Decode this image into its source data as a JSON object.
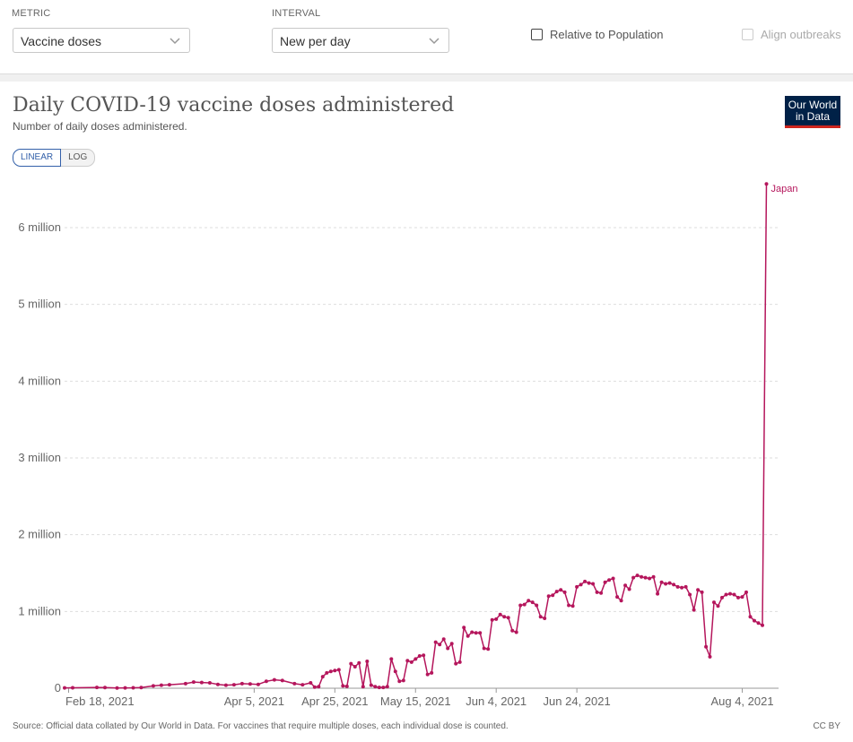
{
  "controls": {
    "metric_label": "METRIC",
    "metric_value": "Vaccine doses",
    "interval_label": "INTERVAL",
    "interval_value": "New per day",
    "relative_label": "Relative to Population",
    "align_label": "Align outbreaks"
  },
  "header": {
    "title": "Daily COVID-19 vaccine doses administered",
    "subtitle": "Number of daily doses administered.",
    "logo_line1": "Our World",
    "logo_line2": "in Data",
    "toggle_linear": "LINEAR",
    "toggle_log": "LOG"
  },
  "footer": {
    "source": "Source: Official data collated by Our World in Data. For vaccines that require multiple doses, each individual dose is counted.",
    "license": "CC BY"
  },
  "colors": {
    "series": "#b5165c",
    "grid": "#dddddd",
    "brand": "#002147",
    "brand_accent": "#ce261e"
  },
  "chart_data": {
    "type": "line",
    "title": "Daily COVID-19 vaccine doses administered",
    "subtitle": "Number of daily doses administered.",
    "scale": "linear",
    "x_start_date": "2021-02-17",
    "x_end_date": "2021-08-13",
    "x_tick_labels": [
      "Feb 18, 2021",
      "Apr 5, 2021",
      "Apr 25, 2021",
      "May 15, 2021",
      "Jun 4, 2021",
      "Jun 24, 2021",
      "Aug 4, 2021"
    ],
    "x_tick_dates": [
      "2021-02-18",
      "2021-04-05",
      "2021-04-25",
      "2021-05-15",
      "2021-06-04",
      "2021-06-24",
      "2021-08-04"
    ],
    "y_tick_labels": [
      "0",
      "1 million",
      "2 million",
      "3 million",
      "4 million",
      "5 million",
      "6 million"
    ],
    "y_tick_values": [
      0,
      1000000,
      2000000,
      3000000,
      4000000,
      5000000,
      6000000
    ],
    "ylim": [
      0,
      6600000
    ],
    "grid": true,
    "series": [
      {
        "name": "Japan",
        "points": [
          [
            "2021-02-17",
            5000
          ],
          [
            "2021-02-19",
            6000
          ],
          [
            "2021-02-25",
            10000
          ],
          [
            "2021-02-27",
            9000
          ],
          [
            "2021-03-02",
            4000
          ],
          [
            "2021-03-04",
            5000
          ],
          [
            "2021-03-06",
            6000
          ],
          [
            "2021-03-08",
            9000
          ],
          [
            "2021-03-11",
            30000
          ],
          [
            "2021-03-13",
            40000
          ],
          [
            "2021-03-15",
            45000
          ],
          [
            "2021-03-19",
            60000
          ],
          [
            "2021-03-21",
            80000
          ],
          [
            "2021-03-23",
            75000
          ],
          [
            "2021-03-25",
            70000
          ],
          [
            "2021-03-27",
            50000
          ],
          [
            "2021-03-29",
            40000
          ],
          [
            "2021-03-31",
            45000
          ],
          [
            "2021-04-02",
            60000
          ],
          [
            "2021-04-04",
            55000
          ],
          [
            "2021-04-06",
            50000
          ],
          [
            "2021-04-08",
            90000
          ],
          [
            "2021-04-10",
            110000
          ],
          [
            "2021-04-12",
            100000
          ],
          [
            "2021-04-15",
            60000
          ],
          [
            "2021-04-17",
            45000
          ],
          [
            "2021-04-19",
            70000
          ],
          [
            "2021-04-20",
            15000
          ],
          [
            "2021-04-21",
            20000
          ],
          [
            "2021-04-22",
            150000
          ],
          [
            "2021-04-23",
            200000
          ],
          [
            "2021-04-24",
            220000
          ],
          [
            "2021-04-25",
            230000
          ],
          [
            "2021-04-26",
            240000
          ],
          [
            "2021-04-27",
            30000
          ],
          [
            "2021-04-28",
            25000
          ],
          [
            "2021-04-29",
            320000
          ],
          [
            "2021-04-30",
            280000
          ],
          [
            "2021-05-01",
            330000
          ],
          [
            "2021-05-02",
            20000
          ],
          [
            "2021-05-03",
            350000
          ],
          [
            "2021-05-04",
            40000
          ],
          [
            "2021-05-05",
            20000
          ],
          [
            "2021-05-06",
            10000
          ],
          [
            "2021-05-07",
            10000
          ],
          [
            "2021-05-08",
            20000
          ],
          [
            "2021-05-09",
            380000
          ],
          [
            "2021-05-10",
            220000
          ],
          [
            "2021-05-11",
            90000
          ],
          [
            "2021-05-12",
            100000
          ],
          [
            "2021-05-13",
            360000
          ],
          [
            "2021-05-14",
            340000
          ],
          [
            "2021-05-15",
            380000
          ],
          [
            "2021-05-16",
            420000
          ],
          [
            "2021-05-17",
            430000
          ],
          [
            "2021-05-18",
            180000
          ],
          [
            "2021-05-19",
            200000
          ],
          [
            "2021-05-20",
            600000
          ],
          [
            "2021-05-21",
            570000
          ],
          [
            "2021-05-22",
            640000
          ],
          [
            "2021-05-23",
            520000
          ],
          [
            "2021-05-24",
            580000
          ],
          [
            "2021-05-25",
            320000
          ],
          [
            "2021-05-26",
            340000
          ],
          [
            "2021-05-27",
            790000
          ],
          [
            "2021-05-28",
            680000
          ],
          [
            "2021-05-29",
            730000
          ],
          [
            "2021-05-30",
            720000
          ],
          [
            "2021-05-31",
            720000
          ],
          [
            "2021-06-01",
            520000
          ],
          [
            "2021-06-02",
            510000
          ],
          [
            "2021-06-03",
            890000
          ],
          [
            "2021-06-04",
            900000
          ],
          [
            "2021-06-05",
            960000
          ],
          [
            "2021-06-06",
            930000
          ],
          [
            "2021-06-07",
            920000
          ],
          [
            "2021-06-08",
            750000
          ],
          [
            "2021-06-09",
            730000
          ],
          [
            "2021-06-10",
            1080000
          ],
          [
            "2021-06-11",
            1090000
          ],
          [
            "2021-06-12",
            1140000
          ],
          [
            "2021-06-13",
            1120000
          ],
          [
            "2021-06-14",
            1080000
          ],
          [
            "2021-06-15",
            930000
          ],
          [
            "2021-06-16",
            910000
          ],
          [
            "2021-06-17",
            1200000
          ],
          [
            "2021-06-18",
            1210000
          ],
          [
            "2021-06-19",
            1260000
          ],
          [
            "2021-06-20",
            1280000
          ],
          [
            "2021-06-21",
            1250000
          ],
          [
            "2021-06-22",
            1080000
          ],
          [
            "2021-06-23",
            1070000
          ],
          [
            "2021-06-24",
            1320000
          ],
          [
            "2021-06-25",
            1350000
          ],
          [
            "2021-06-26",
            1390000
          ],
          [
            "2021-06-27",
            1370000
          ],
          [
            "2021-06-28",
            1360000
          ],
          [
            "2021-06-29",
            1250000
          ],
          [
            "2021-06-30",
            1240000
          ],
          [
            "2021-07-01",
            1380000
          ],
          [
            "2021-07-02",
            1410000
          ],
          [
            "2021-07-03",
            1430000
          ],
          [
            "2021-07-04",
            1190000
          ],
          [
            "2021-07-05",
            1140000
          ],
          [
            "2021-07-06",
            1340000
          ],
          [
            "2021-07-07",
            1290000
          ],
          [
            "2021-07-08",
            1440000
          ],
          [
            "2021-07-09",
            1470000
          ],
          [
            "2021-07-10",
            1450000
          ],
          [
            "2021-07-11",
            1440000
          ],
          [
            "2021-07-12",
            1430000
          ],
          [
            "2021-07-13",
            1450000
          ],
          [
            "2021-07-14",
            1230000
          ],
          [
            "2021-07-15",
            1380000
          ],
          [
            "2021-07-16",
            1360000
          ],
          [
            "2021-07-17",
            1370000
          ],
          [
            "2021-07-18",
            1350000
          ],
          [
            "2021-07-19",
            1320000
          ],
          [
            "2021-07-20",
            1310000
          ],
          [
            "2021-07-21",
            1320000
          ],
          [
            "2021-07-22",
            1220000
          ],
          [
            "2021-07-23",
            1020000
          ],
          [
            "2021-07-24",
            1280000
          ],
          [
            "2021-07-25",
            1250000
          ],
          [
            "2021-07-26",
            540000
          ],
          [
            "2021-07-27",
            410000
          ],
          [
            "2021-07-28",
            1120000
          ],
          [
            "2021-07-29",
            1070000
          ],
          [
            "2021-07-30",
            1180000
          ],
          [
            "2021-07-31",
            1220000
          ],
          [
            "2021-08-01",
            1230000
          ],
          [
            "2021-08-02",
            1220000
          ],
          [
            "2021-08-03",
            1180000
          ],
          [
            "2021-08-04",
            1190000
          ],
          [
            "2021-08-05",
            1250000
          ],
          [
            "2021-08-06",
            930000
          ],
          [
            "2021-08-07",
            880000
          ],
          [
            "2021-08-08",
            850000
          ],
          [
            "2021-08-09",
            820000
          ],
          [
            "2021-08-10",
            6570000
          ]
        ]
      }
    ]
  }
}
